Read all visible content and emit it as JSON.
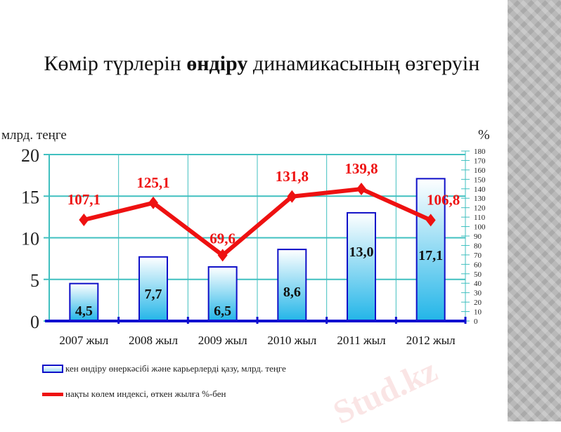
{
  "slide": {
    "title_part1": "Көмір түрлерін ",
    "title_bold": "өндіру",
    "title_part2": " динамикасының өзгеруін",
    "watermark": "Stud.kz"
  },
  "colors": {
    "bar_edge": "#1010c8",
    "bar_fill_top": "#ffffff",
    "bar_fill_bottom": "#22b5e8",
    "line": "#ee1111",
    "grid": "#40c0c0",
    "axis": "#1010d0"
  },
  "chart_data": {
    "type": "bar+line",
    "categories": [
      "2007 жыл",
      "2008 жыл",
      "2009 жыл",
      "2010 жыл",
      "2011 жыл",
      "2012 жыл"
    ],
    "series": [
      {
        "name": "кен өндіру өнеркәсібі және карьерлерді қазу, млрд. теңге",
        "type": "bar",
        "axis": "left",
        "values": [
          4.5,
          7.7,
          6.5,
          8.6,
          13.0,
          17.1
        ],
        "labels": [
          "4,5",
          "7,7",
          "6,5",
          "8,6",
          "13,0",
          "17,1"
        ]
      },
      {
        "name": "нақты көлем индексі, өткен жылға %-бен",
        "type": "line",
        "axis": "right",
        "values": [
          107.1,
          125.1,
          69.6,
          131.8,
          139.8,
          106.8
        ],
        "labels": [
          "107,1",
          "125,1",
          "69,6",
          "131,8",
          "139,8",
          "106,8"
        ]
      }
    ],
    "ylabel": "млрд. теңге",
    "y2label": "%",
    "ylim": [
      0,
      20
    ],
    "yticks": [
      0,
      5,
      10,
      15,
      20
    ],
    "y2lim": [
      0,
      180
    ],
    "y2ticks": [
      0,
      10,
      20,
      30,
      40,
      50,
      60,
      70,
      80,
      90,
      100,
      110,
      120,
      130,
      140,
      150,
      160,
      170,
      180
    ],
    "grid": true,
    "legend": "bottom-left"
  }
}
